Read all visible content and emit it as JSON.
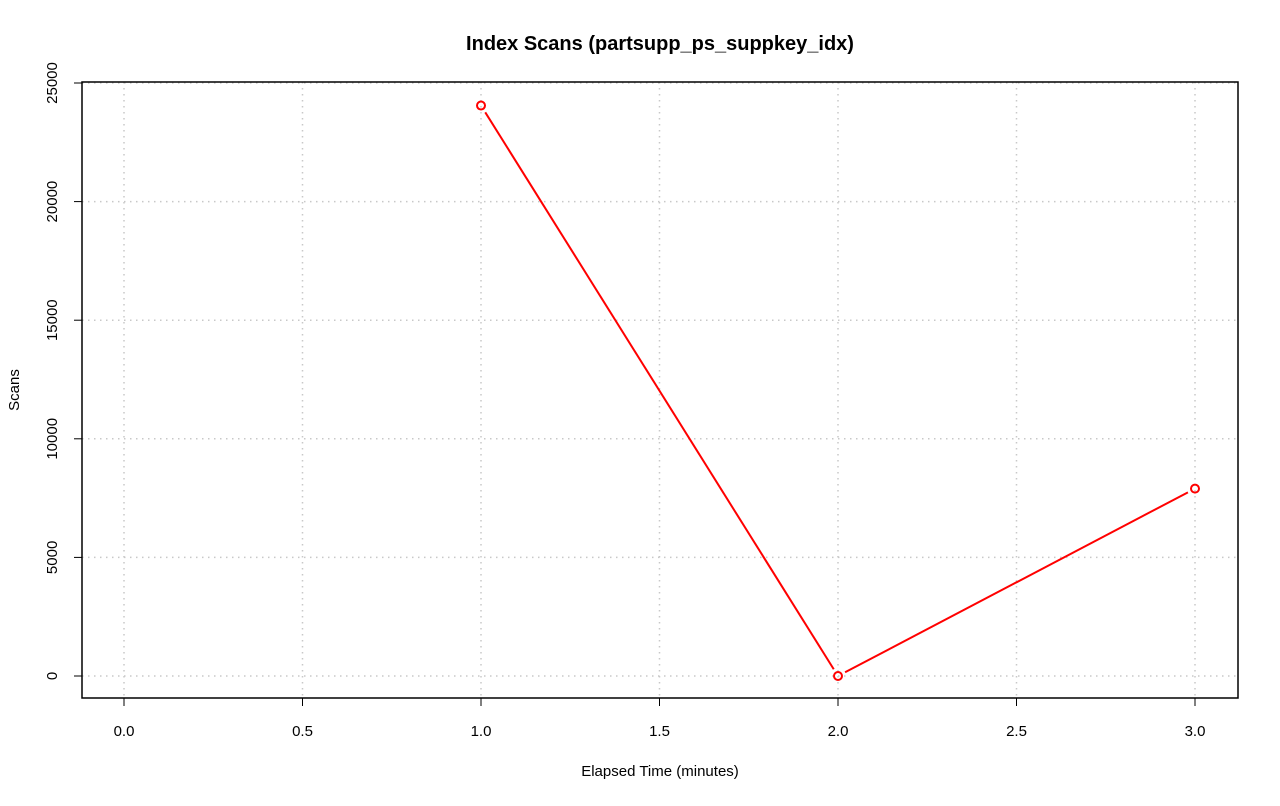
{
  "chart_data": {
    "type": "line",
    "title": "Index Scans (partsupp_ps_suppkey_idx)",
    "xlabel": "Elapsed Time (minutes)",
    "ylabel": "Scans",
    "xlim": [
      0,
      3
    ],
    "ylim": [
      0,
      25000
    ],
    "x_ticks": [
      0.0,
      0.5,
      1.0,
      1.5,
      2.0,
      2.5,
      3.0
    ],
    "x_tick_labels": [
      "0.0",
      "0.5",
      "1.0",
      "1.5",
      "2.0",
      "2.5",
      "3.0"
    ],
    "y_ticks": [
      0,
      5000,
      10000,
      15000,
      20000,
      25000
    ],
    "y_tick_labels": [
      "0",
      "5000",
      "10000",
      "15000",
      "20000",
      "25000"
    ],
    "grid": true,
    "series": [
      {
        "x": [
          1.0,
          2.0,
          3.0
        ],
        "y": [
          24050,
          0,
          7900
        ],
        "color": "#ff0000",
        "marker": "open-circle"
      }
    ]
  }
}
